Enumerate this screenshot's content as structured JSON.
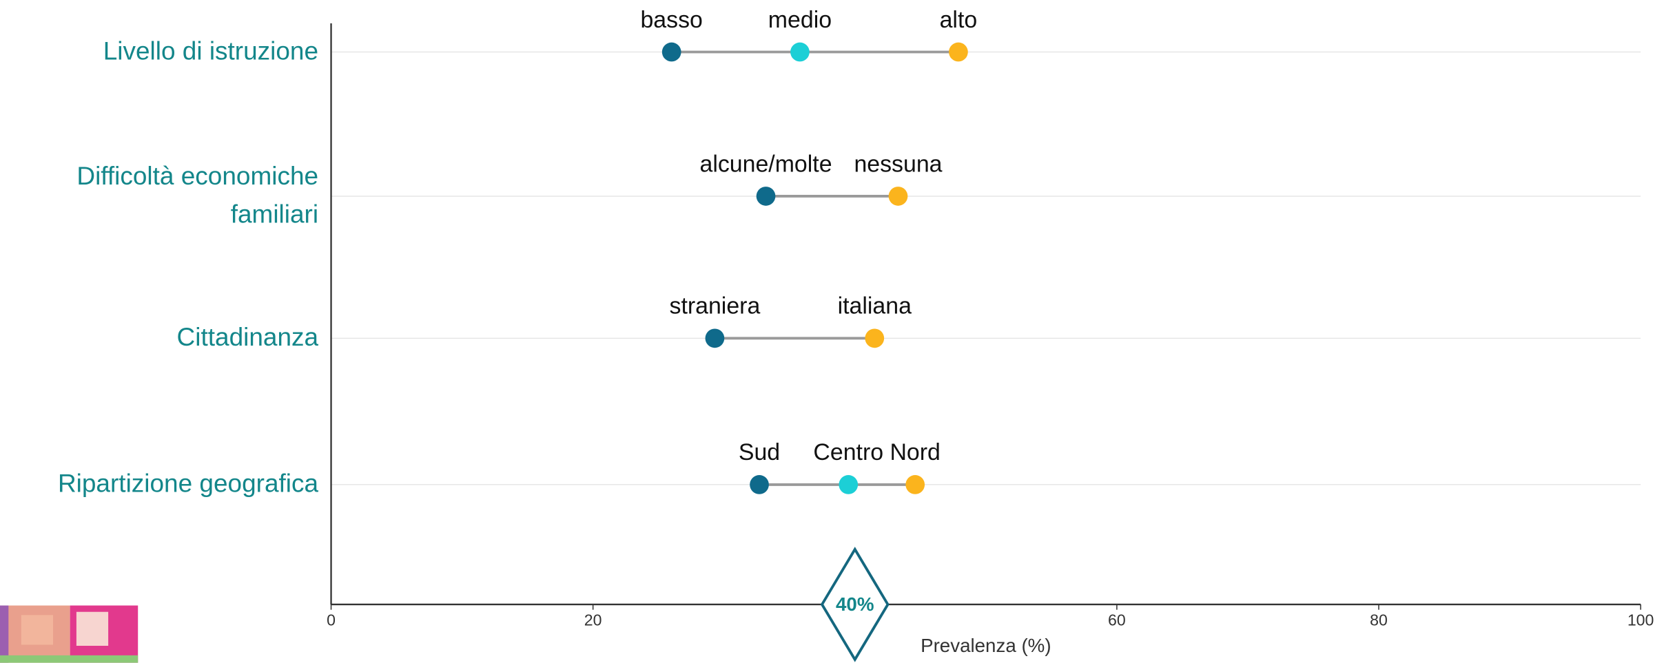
{
  "chart_data": {
    "type": "dumbbell",
    "categories": [
      "Livello di istruzione",
      "Difficoltà economiche\nfamiliari",
      "Cittadinanza",
      "Ripartizione geografica"
    ],
    "groups": [
      {
        "labels": [
          "basso",
          "medio",
          "alto"
        ],
        "values": [
          26,
          35.8,
          47.9
        ],
        "colors": [
          "#0f6a8b",
          "#1ccfd6",
          "#fbb41d"
        ]
      },
      {
        "labels": [
          "alcune/molte",
          "nessuna"
        ],
        "values": [
          33.2,
          43.3
        ],
        "colors": [
          "#0f6a8b",
          "#fbb41d"
        ]
      },
      {
        "labels": [
          "straniera",
          "italiana"
        ],
        "values": [
          29.3,
          41.5
        ],
        "colors": [
          "#0f6a8b",
          "#fbb41d"
        ]
      },
      {
        "labels": [
          "Sud",
          "Centro",
          "Nord"
        ],
        "values": [
          32.7,
          39.5,
          44.6
        ],
        "colors": [
          "#0f6a8b",
          "#1ccfd6",
          "#fbb41d"
        ]
      }
    ],
    "reference": {
      "value": 40,
      "label": "40%"
    },
    "xlabel": "Prevalenza (%)",
    "xlim": [
      0,
      100
    ],
    "xticks": [
      0,
      20,
      60,
      80,
      100
    ],
    "grid": true
  }
}
